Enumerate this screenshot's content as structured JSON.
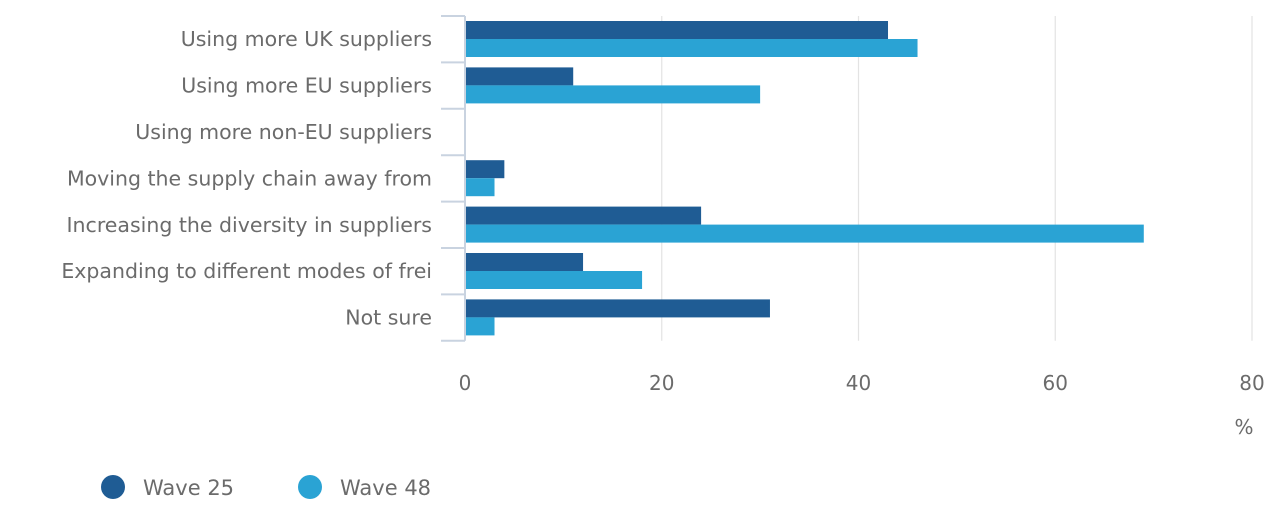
{
  "chart_data": {
    "type": "bar",
    "orientation": "horizontal",
    "categories": [
      "Using more UK suppliers",
      "Using more EU suppliers",
      "Using more non-EU suppliers",
      "Moving the supply chain away from",
      "Increasing the diversity in suppliers",
      "Expanding to different modes of frei",
      "Not sure"
    ],
    "series": [
      {
        "name": "Wave 25",
        "color": "#1f5c94",
        "values": [
          43,
          11,
          0,
          4,
          24,
          12,
          31
        ]
      },
      {
        "name": "Wave 48",
        "color": "#2aa3d4",
        "values": [
          46,
          30,
          0,
          3,
          69,
          18,
          3
        ]
      }
    ],
    "xlim": [
      0,
      80
    ],
    "xticks": [
      "0",
      "20",
      "40",
      "60",
      "80"
    ],
    "xunit": "%",
    "grid": true,
    "legend_position": "bottom-left"
  }
}
